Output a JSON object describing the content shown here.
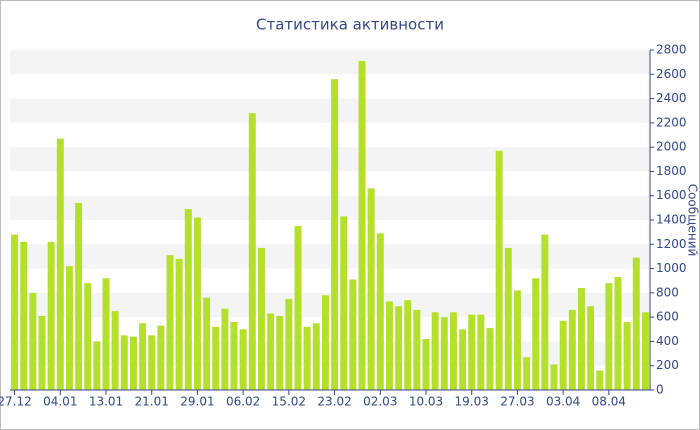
{
  "chart_data": {
    "type": "bar",
    "title": "Статистика активности",
    "y_label": "Сообщений",
    "categories": [
      "27.12",
      null,
      null,
      null,
      null,
      "04.01",
      null,
      null,
      null,
      null,
      "13.01",
      null,
      null,
      null,
      null,
      "21.01",
      null,
      null,
      null,
      null,
      "29.01",
      null,
      null,
      null,
      null,
      "06.02",
      null,
      null,
      null,
      null,
      "15.02",
      null,
      null,
      null,
      null,
      "23.02",
      null,
      null,
      null,
      null,
      "02.03",
      null,
      null,
      null,
      null,
      "10.03",
      null,
      null,
      null,
      null,
      "19.03",
      null,
      null,
      null,
      null,
      "27.03",
      null,
      null,
      null,
      null,
      "03.04",
      null,
      null,
      null,
      null,
      "08.04",
      null,
      null,
      null,
      null
    ],
    "values": [
      1280,
      1220,
      800,
      610,
      1220,
      2070,
      1020,
      1540,
      880,
      400,
      920,
      650,
      450,
      440,
      550,
      450,
      530,
      1110,
      1080,
      1490,
      1420,
      760,
      520,
      670,
      560,
      500,
      2280,
      1170,
      630,
      610,
      750,
      1350,
      520,
      550,
      780,
      2560,
      1430,
      910,
      2710,
      1660,
      1290,
      730,
      690,
      740,
      660,
      420,
      640,
      600,
      640,
      500,
      620,
      620,
      510,
      1970,
      1170,
      820,
      270,
      920,
      1280,
      210,
      570,
      660,
      840,
      690,
      160,
      880,
      930,
      560,
      1090,
      640
    ],
    "color": "#b4e02c",
    "ylim": [
      0,
      2800
    ],
    "yticks": [
      0,
      200,
      400,
      600,
      800,
      1000,
      1200,
      1400,
      1600,
      1800,
      2000,
      2200,
      2400,
      2600,
      2800
    ],
    "grid": true
  }
}
